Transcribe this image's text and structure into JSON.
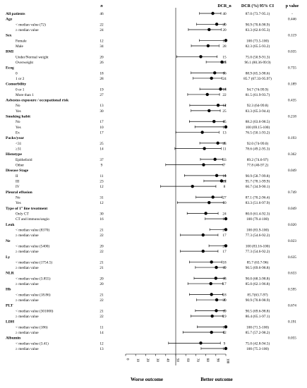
{
  "chart_data": {
    "type": "forest",
    "title": "",
    "columns": {
      "n": "n",
      "dcr_n": "DCR_n",
      "dcr_ci": "DCR (%) 95% CI",
      "p": "p value"
    },
    "x_axis": {
      "range": [
        0,
        100
      ],
      "ticks": [
        "0",
        "10",
        "20",
        "30",
        "40",
        "50",
        "60",
        "70",
        "80",
        "90",
        "100"
      ],
      "tick_values": [
        0,
        10,
        20,
        30,
        40,
        50,
        60,
        70,
        80,
        90,
        100
      ],
      "reference": 50
    },
    "footer": {
      "left": "Worse outcome",
      "right": "Better outcome"
    },
    "rows": [
      {
        "label": "All patients",
        "group": true,
        "n": "46",
        "dcr_n": "40",
        "ci_text": "87.0 (73.7-95.1)",
        "p": "-",
        "est": 87.0,
        "lo": 73.7,
        "hi": 95.1
      },
      {
        "label": "Age",
        "group": true,
        "p": "0.446"
      },
      {
        "label": "< median value (72)",
        "n": "22",
        "dcr_n": "20",
        "ci_text": "90.9 (70.8-98.9)",
        "est": 90.9,
        "lo": 70.8,
        "hi": 98.9
      },
      {
        "label": "≥ median value",
        "n": "24",
        "dcr_n": "20",
        "ci_text": "83.3 (62.6-95.3)",
        "est": 83.3,
        "lo": 62.6,
        "hi": 95.3
      },
      {
        "label": "Sex",
        "group": true,
        "p": "0.119"
      },
      {
        "label": "Female",
        "n": "12",
        "dcr_n": "12",
        "ci_text": "100 (73.5-100)",
        "est": 100,
        "lo": 73.5,
        "hi": 100
      },
      {
        "label": "Male",
        "n": "34",
        "dcr_n": "28",
        "ci_text": "82.3 (65.5-93.2)",
        "est": 82.3,
        "lo": 65.5,
        "hi": 93.2
      },
      {
        "label": "BMI",
        "group": true,
        "p": "0.035"
      },
      {
        "label": "Under/Normal weight",
        "n": "20",
        "dcr_n": "15",
        "ci_text": "75.0 (50.9-91.3)",
        "est": 75.0,
        "lo": 50.9,
        "hi": 91.3
      },
      {
        "label": "Overweight",
        "n": "26",
        "dcr_n": "25",
        "ci_text": "96.1 (80.36-99.9)",
        "est": 96.1,
        "lo": 80.36,
        "hi": 99.9
      },
      {
        "label": "Ecog",
        "group": true,
        "p": "0.755"
      },
      {
        "label": "0",
        "n": "18",
        "dcr_n": "16",
        "ci_text": "88.9 (65.3-98.6)",
        "est": 88.9,
        "lo": 65.3,
        "hi": 98.6
      },
      {
        "label": "1 or 2",
        "n": "28",
        "dcr_n": "24",
        "ci_text": "85.7 (67.33-95.97)",
        "est": 85.7,
        "lo": 67.33,
        "hi": 95.97
      },
      {
        "label": "Comorbility",
        "group": true,
        "p": "0.189"
      },
      {
        "label": "0 or 1",
        "n": "19",
        "dcr_n": "18",
        "ci_text": "94.7 (74-99.9)",
        "est": 94.7,
        "lo": 74,
        "hi": 99.9
      },
      {
        "label": "More than 1",
        "n": "27",
        "dcr_n": "22",
        "ci_text": "81.5 (61.9-93.7)",
        "est": 81.5,
        "lo": 61.9,
        "hi": 93.7
      },
      {
        "label": "Asbestos exposure / occupational risk",
        "group": true,
        "p": "0.435"
      },
      {
        "label": "No",
        "n": "13",
        "dcr_n": "12",
        "ci_text": "92.3 (64-99.8)",
        "est": 92.3,
        "lo": 64,
        "hi": 99.8
      },
      {
        "label": "Yes",
        "n": "30",
        "dcr_n": "25",
        "ci_text": "83.3 (65.3-94.4)",
        "est": 83.3,
        "lo": 65.3,
        "hi": 94.4
      },
      {
        "label": "Smoking habit",
        "group": true,
        "p": "0.218"
      },
      {
        "label": "No",
        "n": "17",
        "dcr_n": "15",
        "ci_text": "88.2 (63.6-98.5)",
        "est": 88.2,
        "lo": 63.6,
        "hi": 98.5
      },
      {
        "label": "Yes",
        "n": "10",
        "dcr_n": "10",
        "ci_text": "100 (69.15-100)",
        "est": 100,
        "lo": 69.15,
        "hi": 100
      },
      {
        "label": "Ex",
        "n": "17",
        "dcr_n": "13",
        "ci_text": "76.5 (50.1-93.2)",
        "est": 76.5,
        "lo": 50.1,
        "hi": 93.2
      },
      {
        "label": "Packs/year",
        "group": true,
        "p": "0.193"
      },
      {
        "label": "<31",
        "n": "25",
        "dcr_n": "23",
        "ci_text": "92.0 (74-99.0)",
        "est": 92.0,
        "lo": 74,
        "hi": 99.0
      },
      {
        "label": "≥31",
        "n": "14",
        "dcr_n": "11",
        "ci_text": "78.6 (49.2-95.3)",
        "est": 78.6,
        "lo": 49.2,
        "hi": 95.3
      },
      {
        "label": "Histotype",
        "group": true,
        "p": "0.362"
      },
      {
        "label": "Epithelioid",
        "n": "37",
        "dcr_n": "33",
        "ci_text": "89.2 (74.6-97)",
        "est": 89.2,
        "lo": 74.6,
        "hi": 97
      },
      {
        "label": "Other",
        "n": "9",
        "dcr_n": "7",
        "ci_text": "77.8 (40-97.2)",
        "est": 77.8,
        "lo": 40,
        "hi": 97.2
      },
      {
        "label": "Disease Stage",
        "group": true,
        "p": "0.049"
      },
      {
        "label": "II",
        "n": "11",
        "dcr_n": "10",
        "ci_text": "90.9 (58.7-99.8)",
        "est": 90.9,
        "lo": 58.7,
        "hi": 99.8
      },
      {
        "label": "III",
        "n": "23",
        "dcr_n": "22",
        "ci_text": "95.7 (78.1-99.9)",
        "est": 95.7,
        "lo": 78.1,
        "hi": 99.9
      },
      {
        "label": "IV",
        "n": "12",
        "dcr_n": "8",
        "ci_text": "66.7 (34.9-90.1)",
        "est": 66.7,
        "lo": 34.9,
        "hi": 90.1
      },
      {
        "label": "Pleural effusion",
        "group": true,
        "p": "0.749"
      },
      {
        "label": "No",
        "n": "31",
        "dcr_n": "27",
        "ci_text": "87.1 (70.2-96.4)",
        "est": 87.1,
        "lo": 70.2,
        "hi": 96.4
      },
      {
        "label": "Yes",
        "n": "12",
        "dcr_n": "10",
        "ci_text": "83.3 (51.6-97.9)",
        "est": 83.3,
        "lo": 51.6,
        "hi": 97.9
      },
      {
        "label": "Type  of 1° line treatment",
        "group": true,
        "p": "0.049"
      },
      {
        "label": "Only CT",
        "n": "30",
        "dcr_n": "24",
        "ci_text": "80.0 (61.4-92.3)",
        "est": 80.0,
        "lo": 61.4,
        "hi": 92.3
      },
      {
        "label": "CT and immuno/angio",
        "n": "16",
        "dcr_n": "16",
        "ci_text": "100 (79.4-100)",
        "est": 100,
        "lo": 79.4,
        "hi": 100
      },
      {
        "label": "Leuk",
        "group": true,
        "p": "0.020"
      },
      {
        "label": "< median value (8370)",
        "n": "21",
        "dcr_n": "21",
        "ci_text": "100 (83.9-100)",
        "est": 100,
        "lo": 83.9,
        "hi": 100
      },
      {
        "label": "≥ median value",
        "n": "22",
        "dcr_n": "17",
        "ci_text": "77.3 (54.6-92.2)",
        "est": 77.3,
        "lo": 54.6,
        "hi": 92.2
      },
      {
        "label": "Ne",
        "group": true,
        "p": "0.023"
      },
      {
        "label": "< median value (5400)",
        "n": "20",
        "dcr_n": "20",
        "ci_text": "100 (83.16-100)",
        "est": 100,
        "lo": 83.16,
        "hi": 100
      },
      {
        "label": "≥ median value",
        "n": "22",
        "dcr_n": "17",
        "ci_text": "77.3 (54.6-92.2)",
        "est": 77.3,
        "lo": 54.6,
        "hi": 92.2
      },
      {
        "label": "Ly",
        "group": true,
        "p": "0.635"
      },
      {
        "label": "< median value (1754.5)",
        "n": "21",
        "dcr_n": "18",
        "ci_text": "85.7 (63.7-96)",
        "est": 85.7,
        "lo": 63.7,
        "hi": 96
      },
      {
        "label": "≥ median value",
        "n": "21",
        "dcr_n": "19",
        "ci_text": "90.5 (69.6-98.8)",
        "est": 90.5,
        "lo": 69.6,
        "hi": 98.8
      },
      {
        "label": "NLR",
        "group": true,
        "p": "0.633"
      },
      {
        "label": "< median value (3.855)",
        "n": "20",
        "dcr_n": "18",
        "ci_text": "90.0 (68.3-98.8)",
        "est": 90.0,
        "lo": 68.3,
        "hi": 98.8
      },
      {
        "label": "≥ median value",
        "n": "20",
        "dcr_n": "17",
        "ci_text": "85.0 (62.1-96.8)",
        "est": 85.0,
        "lo": 62.1,
        "hi": 96.8
      },
      {
        "label": "Hb",
        "group": true,
        "p": "0.595"
      },
      {
        "label": "< median value (18.86)",
        "n": "21",
        "dcr_n": "18",
        "ci_text": "85.7(63.7-97)",
        "est": 85.7,
        "lo": 63.7,
        "hi": 97
      },
      {
        "label": "≥ median value",
        "n": "22",
        "dcr_n": "20",
        "ci_text": "90.9 (70.8-98.9)",
        "est": 90.9,
        "lo": 70.8,
        "hi": 98.9
      },
      {
        "label": "PLT",
        "group": true,
        "p": "0.674"
      },
      {
        "label": "< median value (301000)",
        "n": "21",
        "dcr_n": "19",
        "ci_text": "90.5 (69.6-98.8)",
        "est": 90.5,
        "lo": 69.6,
        "hi": 98.8
      },
      {
        "label": "≥ median value",
        "n": "22",
        "dcr_n": "19",
        "ci_text": "86.4 (65.1-97.1)",
        "est": 86.4,
        "lo": 65.1,
        "hi": 97.1
      },
      {
        "label": "LDH",
        "group": true,
        "p": "0.191"
      },
      {
        "label": "< median value (186)",
        "n": "11",
        "dcr_n": "11",
        "ci_text": "100 (71.5-100)",
        "est": 100,
        "lo": 71.5,
        "hi": 100
      },
      {
        "label": "≥ median value",
        "n": "14",
        "dcr_n": "12",
        "ci_text": "85.7 (57.2-98.2)",
        "est": 85.7,
        "lo": 57.2,
        "hi": 98.2
      },
      {
        "label": "Albumin",
        "group": true,
        "p": "0.055"
      },
      {
        "label": "< median value (3.41)",
        "n": "12",
        "dcr_n": "9",
        "ci_text": "75.0 (42.8-94.5)",
        "est": 75.0,
        "lo": 42.8,
        "hi": 94.5
      },
      {
        "label": "≥ median value",
        "n": "13",
        "dcr_n": "13",
        "ci_text": "100 (75.3-100)",
        "est": 100,
        "lo": 75.3,
        "hi": 100
      }
    ]
  }
}
